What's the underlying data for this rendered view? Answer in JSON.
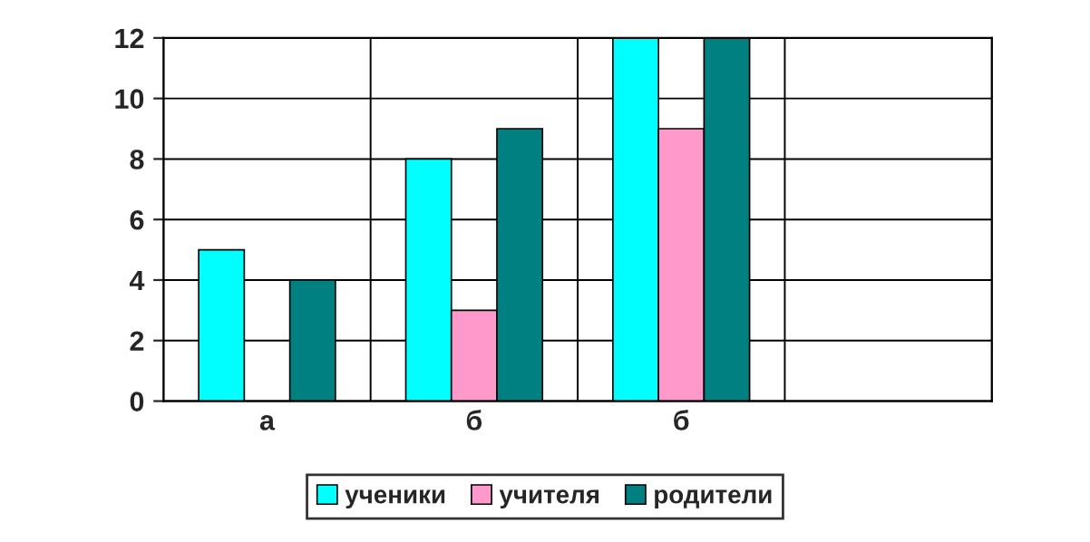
{
  "chart_data": {
    "type": "bar",
    "categories": [
      "а",
      "б",
      "б",
      null
    ],
    "series": [
      {
        "name": "ученики",
        "color": "#00ffff",
        "values": [
          5,
          8,
          12,
          null
        ]
      },
      {
        "name": "учителя",
        "color": "#ff99cc",
        "values": [
          null,
          3,
          9,
          null
        ]
      },
      {
        "name": "родители",
        "color": "#008080",
        "values": [
          4,
          9,
          12,
          null
        ]
      }
    ],
    "ylim": [
      0,
      12
    ],
    "yticks": [
      0,
      2,
      4,
      6,
      8,
      10,
      12
    ],
    "grid": true,
    "legend": "bottom"
  }
}
